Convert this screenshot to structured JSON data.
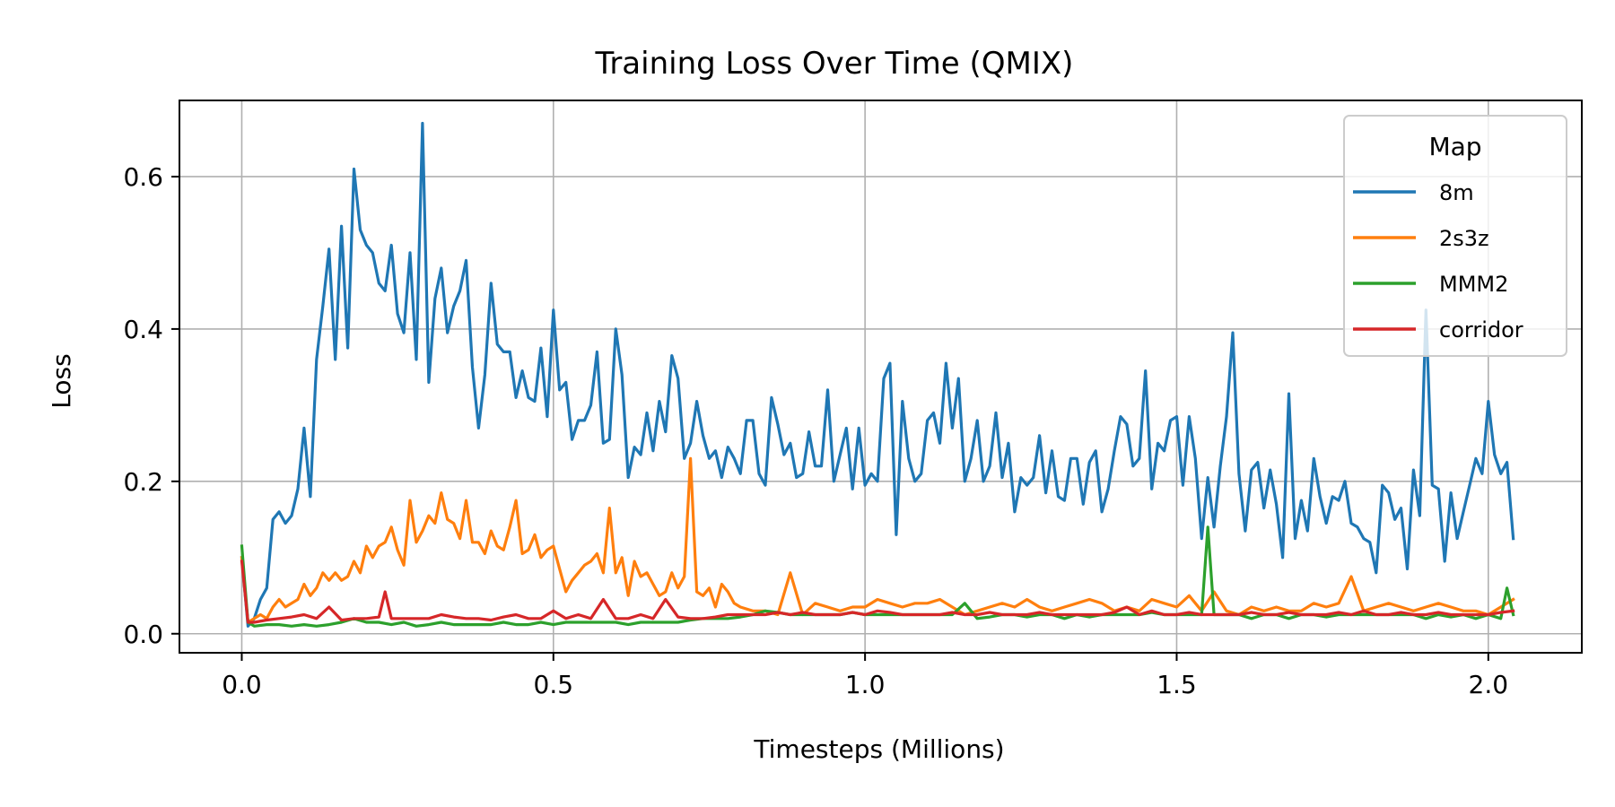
{
  "chart_data": {
    "type": "line",
    "title": "Training Loss Over Time (QMIX)",
    "xlabel": "Timesteps (Millions)",
    "ylabel": "Loss",
    "xlim": [
      -0.1,
      2.15
    ],
    "ylim": [
      -0.025,
      0.7
    ],
    "xticks": [
      0.0,
      0.5,
      1.0,
      1.5,
      2.0
    ],
    "xtick_labels": [
      "0.0",
      "0.5",
      "1.0",
      "1.5",
      "2.0"
    ],
    "yticks": [
      0.0,
      0.2,
      0.4,
      0.6
    ],
    "ytick_labels": [
      "0.0",
      "0.2",
      "0.4",
      "0.6"
    ],
    "grid": true,
    "legend": {
      "title": "Map",
      "placement": "top-right"
    },
    "series": [
      {
        "name": "8m",
        "color": "#1f77b4",
        "x": [
          0.0,
          0.01,
          0.02,
          0.03,
          0.04,
          0.05,
          0.06,
          0.07,
          0.08,
          0.09,
          0.1,
          0.11,
          0.12,
          0.13,
          0.14,
          0.15,
          0.16,
          0.17,
          0.18,
          0.19,
          0.2,
          0.21,
          0.22,
          0.23,
          0.24,
          0.25,
          0.26,
          0.27,
          0.28,
          0.29,
          0.3,
          0.31,
          0.32,
          0.33,
          0.34,
          0.35,
          0.36,
          0.37,
          0.38,
          0.39,
          0.4,
          0.41,
          0.42,
          0.43,
          0.44,
          0.45,
          0.46,
          0.47,
          0.48,
          0.49,
          0.5,
          0.51,
          0.52,
          0.53,
          0.54,
          0.55,
          0.56,
          0.57,
          0.58,
          0.59,
          0.6,
          0.61,
          0.62,
          0.63,
          0.64,
          0.65,
          0.66,
          0.67,
          0.68,
          0.69,
          0.7,
          0.71,
          0.72,
          0.73,
          0.74,
          0.75,
          0.76,
          0.77,
          0.78,
          0.79,
          0.8,
          0.81,
          0.82,
          0.83,
          0.84,
          0.85,
          0.86,
          0.87,
          0.88,
          0.89,
          0.9,
          0.91,
          0.92,
          0.93,
          0.94,
          0.95,
          0.96,
          0.97,
          0.98,
          0.99,
          1.0,
          1.01,
          1.02,
          1.03,
          1.04,
          1.05,
          1.06,
          1.07,
          1.08,
          1.09,
          1.1,
          1.11,
          1.12,
          1.13,
          1.14,
          1.15,
          1.16,
          1.17,
          1.18,
          1.19,
          1.2,
          1.21,
          1.22,
          1.23,
          1.24,
          1.25,
          1.26,
          1.27,
          1.28,
          1.29,
          1.3,
          1.31,
          1.32,
          1.33,
          1.34,
          1.35,
          1.36,
          1.37,
          1.38,
          1.39,
          1.4,
          1.41,
          1.42,
          1.43,
          1.44,
          1.45,
          1.46,
          1.47,
          1.48,
          1.49,
          1.5,
          1.51,
          1.52,
          1.53,
          1.54,
          1.55,
          1.56,
          1.57,
          1.58,
          1.59,
          1.6,
          1.61,
          1.62,
          1.63,
          1.64,
          1.65,
          1.66,
          1.67,
          1.68,
          1.69,
          1.7,
          1.71,
          1.72,
          1.73,
          1.74,
          1.75,
          1.76,
          1.77,
          1.78,
          1.79,
          1.8,
          1.81,
          1.82,
          1.83,
          1.84,
          1.85,
          1.86,
          1.87,
          1.88,
          1.89,
          1.9,
          1.91,
          1.92,
          1.93,
          1.94,
          1.95,
          1.96,
          1.97,
          1.98,
          1.99,
          2.0,
          2.01,
          2.02,
          2.03,
          2.04
        ],
        "y": [
          0.1,
          0.01,
          0.02,
          0.045,
          0.06,
          0.15,
          0.16,
          0.145,
          0.155,
          0.19,
          0.27,
          0.18,
          0.36,
          0.43,
          0.505,
          0.36,
          0.535,
          0.375,
          0.61,
          0.53,
          0.51,
          0.5,
          0.46,
          0.45,
          0.51,
          0.42,
          0.395,
          0.5,
          0.36,
          0.67,
          0.33,
          0.44,
          0.48,
          0.395,
          0.43,
          0.45,
          0.49,
          0.35,
          0.27,
          0.34,
          0.46,
          0.38,
          0.37,
          0.37,
          0.31,
          0.345,
          0.31,
          0.305,
          0.375,
          0.285,
          0.425,
          0.32,
          0.33,
          0.255,
          0.28,
          0.28,
          0.3,
          0.37,
          0.25,
          0.255,
          0.4,
          0.34,
          0.205,
          0.245,
          0.235,
          0.29,
          0.24,
          0.305,
          0.265,
          0.365,
          0.335,
          0.23,
          0.25,
          0.305,
          0.26,
          0.23,
          0.24,
          0.205,
          0.245,
          0.23,
          0.21,
          0.28,
          0.28,
          0.21,
          0.195,
          0.31,
          0.275,
          0.235,
          0.25,
          0.205,
          0.21,
          0.265,
          0.22,
          0.22,
          0.32,
          0.2,
          0.235,
          0.27,
          0.19,
          0.27,
          0.195,
          0.21,
          0.2,
          0.335,
          0.355,
          0.13,
          0.305,
          0.23,
          0.2,
          0.21,
          0.28,
          0.29,
          0.25,
          0.355,
          0.27,
          0.335,
          0.2,
          0.23,
          0.28,
          0.2,
          0.22,
          0.29,
          0.205,
          0.25,
          0.16,
          0.205,
          0.195,
          0.205,
          0.26,
          0.185,
          0.24,
          0.18,
          0.175,
          0.23,
          0.23,
          0.17,
          0.225,
          0.24,
          0.16,
          0.19,
          0.24,
          0.285,
          0.275,
          0.22,
          0.23,
          0.345,
          0.19,
          0.25,
          0.24,
          0.28,
          0.285,
          0.195,
          0.285,
          0.23,
          0.125,
          0.205,
          0.14,
          0.22,
          0.285,
          0.395,
          0.21,
          0.135,
          0.215,
          0.225,
          0.165,
          0.215,
          0.17,
          0.1,
          0.315,
          0.125,
          0.175,
          0.135,
          0.23,
          0.18,
          0.145,
          0.18,
          0.175,
          0.2,
          0.145,
          0.14,
          0.125,
          0.12,
          0.08,
          0.195,
          0.185,
          0.15,
          0.165,
          0.085,
          0.215,
          0.155,
          0.425,
          0.195,
          0.19,
          0.095,
          0.185,
          0.125,
          0.16,
          0.195,
          0.23,
          0.21,
          0.305,
          0.235,
          0.21,
          0.225,
          0.125
        ]
      },
      {
        "name": "2s3z",
        "color": "#ff7f0e",
        "x": [
          0.0,
          0.01,
          0.02,
          0.03,
          0.04,
          0.05,
          0.06,
          0.07,
          0.08,
          0.09,
          0.1,
          0.11,
          0.12,
          0.13,
          0.14,
          0.15,
          0.16,
          0.17,
          0.18,
          0.19,
          0.2,
          0.21,
          0.22,
          0.23,
          0.24,
          0.25,
          0.26,
          0.27,
          0.28,
          0.29,
          0.3,
          0.31,
          0.32,
          0.33,
          0.34,
          0.35,
          0.36,
          0.37,
          0.38,
          0.39,
          0.4,
          0.41,
          0.42,
          0.43,
          0.44,
          0.45,
          0.46,
          0.47,
          0.48,
          0.49,
          0.5,
          0.51,
          0.52,
          0.53,
          0.54,
          0.55,
          0.56,
          0.57,
          0.58,
          0.59,
          0.6,
          0.61,
          0.62,
          0.63,
          0.64,
          0.65,
          0.66,
          0.67,
          0.68,
          0.69,
          0.7,
          0.71,
          0.72,
          0.73,
          0.74,
          0.75,
          0.76,
          0.77,
          0.78,
          0.79,
          0.8,
          0.82,
          0.84,
          0.86,
          0.88,
          0.9,
          0.92,
          0.94,
          0.96,
          0.98,
          1.0,
          1.02,
          1.04,
          1.06,
          1.08,
          1.1,
          1.12,
          1.14,
          1.16,
          1.18,
          1.2,
          1.22,
          1.24,
          1.26,
          1.28,
          1.3,
          1.32,
          1.34,
          1.36,
          1.38,
          1.4,
          1.42,
          1.44,
          1.46,
          1.48,
          1.5,
          1.52,
          1.54,
          1.56,
          1.58,
          1.6,
          1.62,
          1.64,
          1.66,
          1.68,
          1.7,
          1.72,
          1.74,
          1.76,
          1.78,
          1.8,
          1.82,
          1.84,
          1.86,
          1.88,
          1.9,
          1.92,
          1.94,
          1.96,
          1.98,
          2.0,
          2.02,
          2.04
        ],
        "y": [
          0.1,
          0.015,
          0.02,
          0.025,
          0.02,
          0.035,
          0.045,
          0.035,
          0.04,
          0.045,
          0.065,
          0.05,
          0.06,
          0.08,
          0.07,
          0.08,
          0.07,
          0.075,
          0.095,
          0.08,
          0.115,
          0.1,
          0.115,
          0.12,
          0.14,
          0.11,
          0.09,
          0.175,
          0.12,
          0.135,
          0.155,
          0.145,
          0.185,
          0.15,
          0.145,
          0.125,
          0.175,
          0.12,
          0.12,
          0.105,
          0.135,
          0.115,
          0.11,
          0.14,
          0.175,
          0.105,
          0.11,
          0.13,
          0.1,
          0.11,
          0.115,
          0.085,
          0.055,
          0.07,
          0.08,
          0.09,
          0.095,
          0.105,
          0.08,
          0.165,
          0.08,
          0.1,
          0.05,
          0.095,
          0.075,
          0.08,
          0.065,
          0.05,
          0.055,
          0.08,
          0.06,
          0.075,
          0.23,
          0.055,
          0.05,
          0.06,
          0.035,
          0.065,
          0.055,
          0.04,
          0.035,
          0.03,
          0.03,
          0.025,
          0.08,
          0.025,
          0.04,
          0.035,
          0.03,
          0.035,
          0.035,
          0.045,
          0.04,
          0.035,
          0.04,
          0.04,
          0.045,
          0.035,
          0.025,
          0.03,
          0.035,
          0.04,
          0.035,
          0.045,
          0.035,
          0.03,
          0.035,
          0.04,
          0.045,
          0.04,
          0.03,
          0.035,
          0.03,
          0.045,
          0.04,
          0.035,
          0.05,
          0.03,
          0.055,
          0.03,
          0.025,
          0.035,
          0.03,
          0.035,
          0.03,
          0.03,
          0.04,
          0.035,
          0.04,
          0.075,
          0.03,
          0.035,
          0.04,
          0.035,
          0.03,
          0.035,
          0.04,
          0.035,
          0.03,
          0.03,
          0.025,
          0.035,
          0.045
        ]
      },
      {
        "name": "MMM2",
        "color": "#2ca02c",
        "x": [
          0.0,
          0.01,
          0.02,
          0.04,
          0.06,
          0.08,
          0.1,
          0.12,
          0.14,
          0.16,
          0.18,
          0.2,
          0.22,
          0.24,
          0.26,
          0.28,
          0.3,
          0.32,
          0.34,
          0.36,
          0.38,
          0.4,
          0.42,
          0.44,
          0.46,
          0.48,
          0.5,
          0.52,
          0.54,
          0.56,
          0.58,
          0.6,
          0.62,
          0.64,
          0.66,
          0.68,
          0.7,
          0.72,
          0.74,
          0.76,
          0.78,
          0.8,
          0.82,
          0.84,
          0.86,
          0.88,
          0.9,
          0.92,
          0.94,
          0.96,
          0.98,
          1.0,
          1.02,
          1.04,
          1.06,
          1.08,
          1.1,
          1.12,
          1.14,
          1.16,
          1.18,
          1.2,
          1.22,
          1.24,
          1.26,
          1.28,
          1.3,
          1.32,
          1.34,
          1.36,
          1.38,
          1.4,
          1.42,
          1.44,
          1.46,
          1.48,
          1.5,
          1.52,
          1.54,
          1.55,
          1.56,
          1.58,
          1.6,
          1.62,
          1.64,
          1.66,
          1.68,
          1.7,
          1.72,
          1.74,
          1.76,
          1.78,
          1.8,
          1.82,
          1.84,
          1.86,
          1.88,
          1.9,
          1.92,
          1.94,
          1.96,
          1.98,
          2.0,
          2.02,
          2.03,
          2.04
        ],
        "y": [
          0.115,
          0.015,
          0.01,
          0.012,
          0.012,
          0.01,
          0.012,
          0.01,
          0.012,
          0.015,
          0.02,
          0.015,
          0.015,
          0.012,
          0.015,
          0.01,
          0.012,
          0.015,
          0.012,
          0.012,
          0.012,
          0.012,
          0.015,
          0.012,
          0.012,
          0.015,
          0.012,
          0.015,
          0.015,
          0.015,
          0.015,
          0.015,
          0.012,
          0.015,
          0.015,
          0.015,
          0.015,
          0.018,
          0.02,
          0.02,
          0.02,
          0.022,
          0.025,
          0.03,
          0.028,
          0.025,
          0.025,
          0.025,
          0.025,
          0.025,
          0.028,
          0.025,
          0.025,
          0.025,
          0.025,
          0.025,
          0.025,
          0.025,
          0.025,
          0.04,
          0.02,
          0.022,
          0.025,
          0.025,
          0.022,
          0.025,
          0.025,
          0.02,
          0.025,
          0.022,
          0.025,
          0.025,
          0.025,
          0.025,
          0.028,
          0.025,
          0.025,
          0.025,
          0.025,
          0.14,
          0.025,
          0.025,
          0.025,
          0.02,
          0.025,
          0.025,
          0.02,
          0.025,
          0.025,
          0.022,
          0.025,
          0.025,
          0.025,
          0.025,
          0.025,
          0.025,
          0.025,
          0.02,
          0.025,
          0.022,
          0.025,
          0.02,
          0.025,
          0.02,
          0.06,
          0.025
        ]
      },
      {
        "name": "corridor",
        "color": "#d62728",
        "x": [
          0.0,
          0.01,
          0.02,
          0.04,
          0.06,
          0.08,
          0.1,
          0.12,
          0.14,
          0.16,
          0.18,
          0.2,
          0.22,
          0.23,
          0.24,
          0.26,
          0.28,
          0.3,
          0.32,
          0.34,
          0.36,
          0.38,
          0.4,
          0.42,
          0.44,
          0.46,
          0.48,
          0.5,
          0.52,
          0.54,
          0.56,
          0.58,
          0.6,
          0.62,
          0.64,
          0.66,
          0.68,
          0.7,
          0.72,
          0.74,
          0.76,
          0.78,
          0.8,
          0.82,
          0.84,
          0.86,
          0.88,
          0.9,
          0.92,
          0.94,
          0.96,
          0.98,
          1.0,
          1.02,
          1.04,
          1.06,
          1.08,
          1.1,
          1.12,
          1.14,
          1.16,
          1.18,
          1.2,
          1.22,
          1.24,
          1.26,
          1.28,
          1.3,
          1.32,
          1.34,
          1.36,
          1.38,
          1.4,
          1.42,
          1.44,
          1.46,
          1.48,
          1.5,
          1.52,
          1.54,
          1.56,
          1.58,
          1.6,
          1.62,
          1.64,
          1.66,
          1.68,
          1.7,
          1.72,
          1.74,
          1.76,
          1.78,
          1.8,
          1.82,
          1.84,
          1.86,
          1.88,
          1.9,
          1.92,
          1.94,
          1.96,
          1.98,
          2.0,
          2.02,
          2.04
        ],
        "y": [
          0.095,
          0.015,
          0.015,
          0.018,
          0.02,
          0.022,
          0.025,
          0.02,
          0.035,
          0.018,
          0.02,
          0.02,
          0.022,
          0.055,
          0.02,
          0.02,
          0.02,
          0.02,
          0.025,
          0.022,
          0.02,
          0.02,
          0.018,
          0.022,
          0.025,
          0.02,
          0.02,
          0.03,
          0.02,
          0.025,
          0.02,
          0.045,
          0.02,
          0.02,
          0.025,
          0.02,
          0.045,
          0.022,
          0.02,
          0.02,
          0.022,
          0.025,
          0.025,
          0.025,
          0.025,
          0.028,
          0.025,
          0.028,
          0.025,
          0.025,
          0.025,
          0.028,
          0.025,
          0.03,
          0.028,
          0.025,
          0.025,
          0.025,
          0.025,
          0.028,
          0.025,
          0.025,
          0.028,
          0.025,
          0.025,
          0.025,
          0.028,
          0.025,
          0.025,
          0.025,
          0.025,
          0.025,
          0.028,
          0.035,
          0.025,
          0.03,
          0.025,
          0.025,
          0.028,
          0.025,
          0.025,
          0.025,
          0.025,
          0.028,
          0.025,
          0.025,
          0.028,
          0.025,
          0.025,
          0.025,
          0.028,
          0.025,
          0.03,
          0.025,
          0.025,
          0.028,
          0.025,
          0.025,
          0.028,
          0.025,
          0.025,
          0.025,
          0.025,
          0.028,
          0.03
        ]
      }
    ]
  }
}
